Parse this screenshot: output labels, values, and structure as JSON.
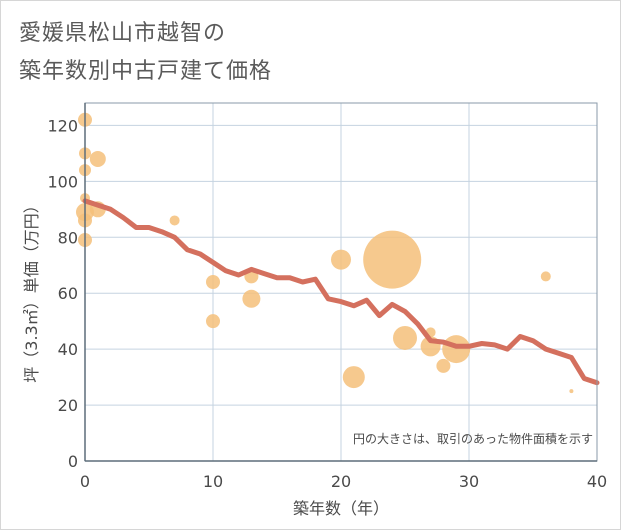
{
  "title_lines": [
    "愛媛県松山市越智の",
    "築年数別中古戸建て価格"
  ],
  "chart_data": {
    "type": "scatter",
    "title": "愛媛県松山市越智の築年数別中古戸建て価格",
    "xlabel": "築年数（年）",
    "ylabel": "坪（3.3㎡）単価（万円）",
    "xlim": [
      0,
      40
    ],
    "ylim": [
      0,
      128
    ],
    "xticks": [
      0,
      10,
      20,
      30,
      40
    ],
    "yticks": [
      0,
      20,
      40,
      60,
      80,
      100,
      120
    ],
    "grid": true,
    "note": "円の大きさは、取引のあった物件面積を示す",
    "colors": {
      "bubble": "#f5c07a",
      "line": "#d4705e",
      "grid": "#c5d3e0",
      "axis": "#8a9aa8"
    },
    "bubbles": [
      {
        "x": 0,
        "y": 122,
        "s": 7
      },
      {
        "x": 0,
        "y": 110,
        "s": 6
      },
      {
        "x": 0,
        "y": 104,
        "s": 6
      },
      {
        "x": 0,
        "y": 94,
        "s": 5
      },
      {
        "x": 0,
        "y": 89,
        "s": 9
      },
      {
        "x": 0,
        "y": 86,
        "s": 7
      },
      {
        "x": 0,
        "y": 79,
        "s": 7
      },
      {
        "x": 1,
        "y": 108,
        "s": 8
      },
      {
        "x": 1,
        "y": 90,
        "s": 8
      },
      {
        "x": 7,
        "y": 86,
        "s": 5
      },
      {
        "x": 10,
        "y": 64,
        "s": 7
      },
      {
        "x": 10,
        "y": 50,
        "s": 7
      },
      {
        "x": 13,
        "y": 66,
        "s": 7
      },
      {
        "x": 13,
        "y": 58,
        "s": 9
      },
      {
        "x": 20,
        "y": 72,
        "s": 10
      },
      {
        "x": 21,
        "y": 30,
        "s": 11
      },
      {
        "x": 24,
        "y": 72,
        "s": 29
      },
      {
        "x": 25,
        "y": 44,
        "s": 12
      },
      {
        "x": 27,
        "y": 46,
        "s": 5
      },
      {
        "x": 27,
        "y": 41,
        "s": 10
      },
      {
        "x": 28,
        "y": 34,
        "s": 7
      },
      {
        "x": 29,
        "y": 40,
        "s": 14
      },
      {
        "x": 36,
        "y": 66,
        "s": 5
      },
      {
        "x": 38,
        "y": 25,
        "s": 2
      }
    ],
    "trend": {
      "x": [
        0,
        1,
        2,
        3,
        4,
        5,
        6,
        7,
        8,
        9,
        10,
        11,
        12,
        13,
        14,
        15,
        16,
        17,
        18,
        19,
        20,
        21,
        22,
        23,
        24,
        25,
        26,
        27,
        28,
        29,
        30,
        31,
        32,
        33,
        34,
        35,
        36,
        37,
        38,
        39,
        40
      ],
      "y": [
        93,
        91.5,
        90,
        87,
        83.5,
        83.5,
        82,
        80,
        75.5,
        74,
        71,
        68,
        66.5,
        68.5,
        67,
        65.5,
        65.5,
        64,
        65,
        58,
        57,
        55.5,
        57.5,
        52,
        56,
        53.5,
        49,
        43,
        42.5,
        41,
        41,
        42,
        41.5,
        40,
        44.5,
        43,
        40,
        38.5,
        37,
        29.5,
        28
      ]
    }
  }
}
